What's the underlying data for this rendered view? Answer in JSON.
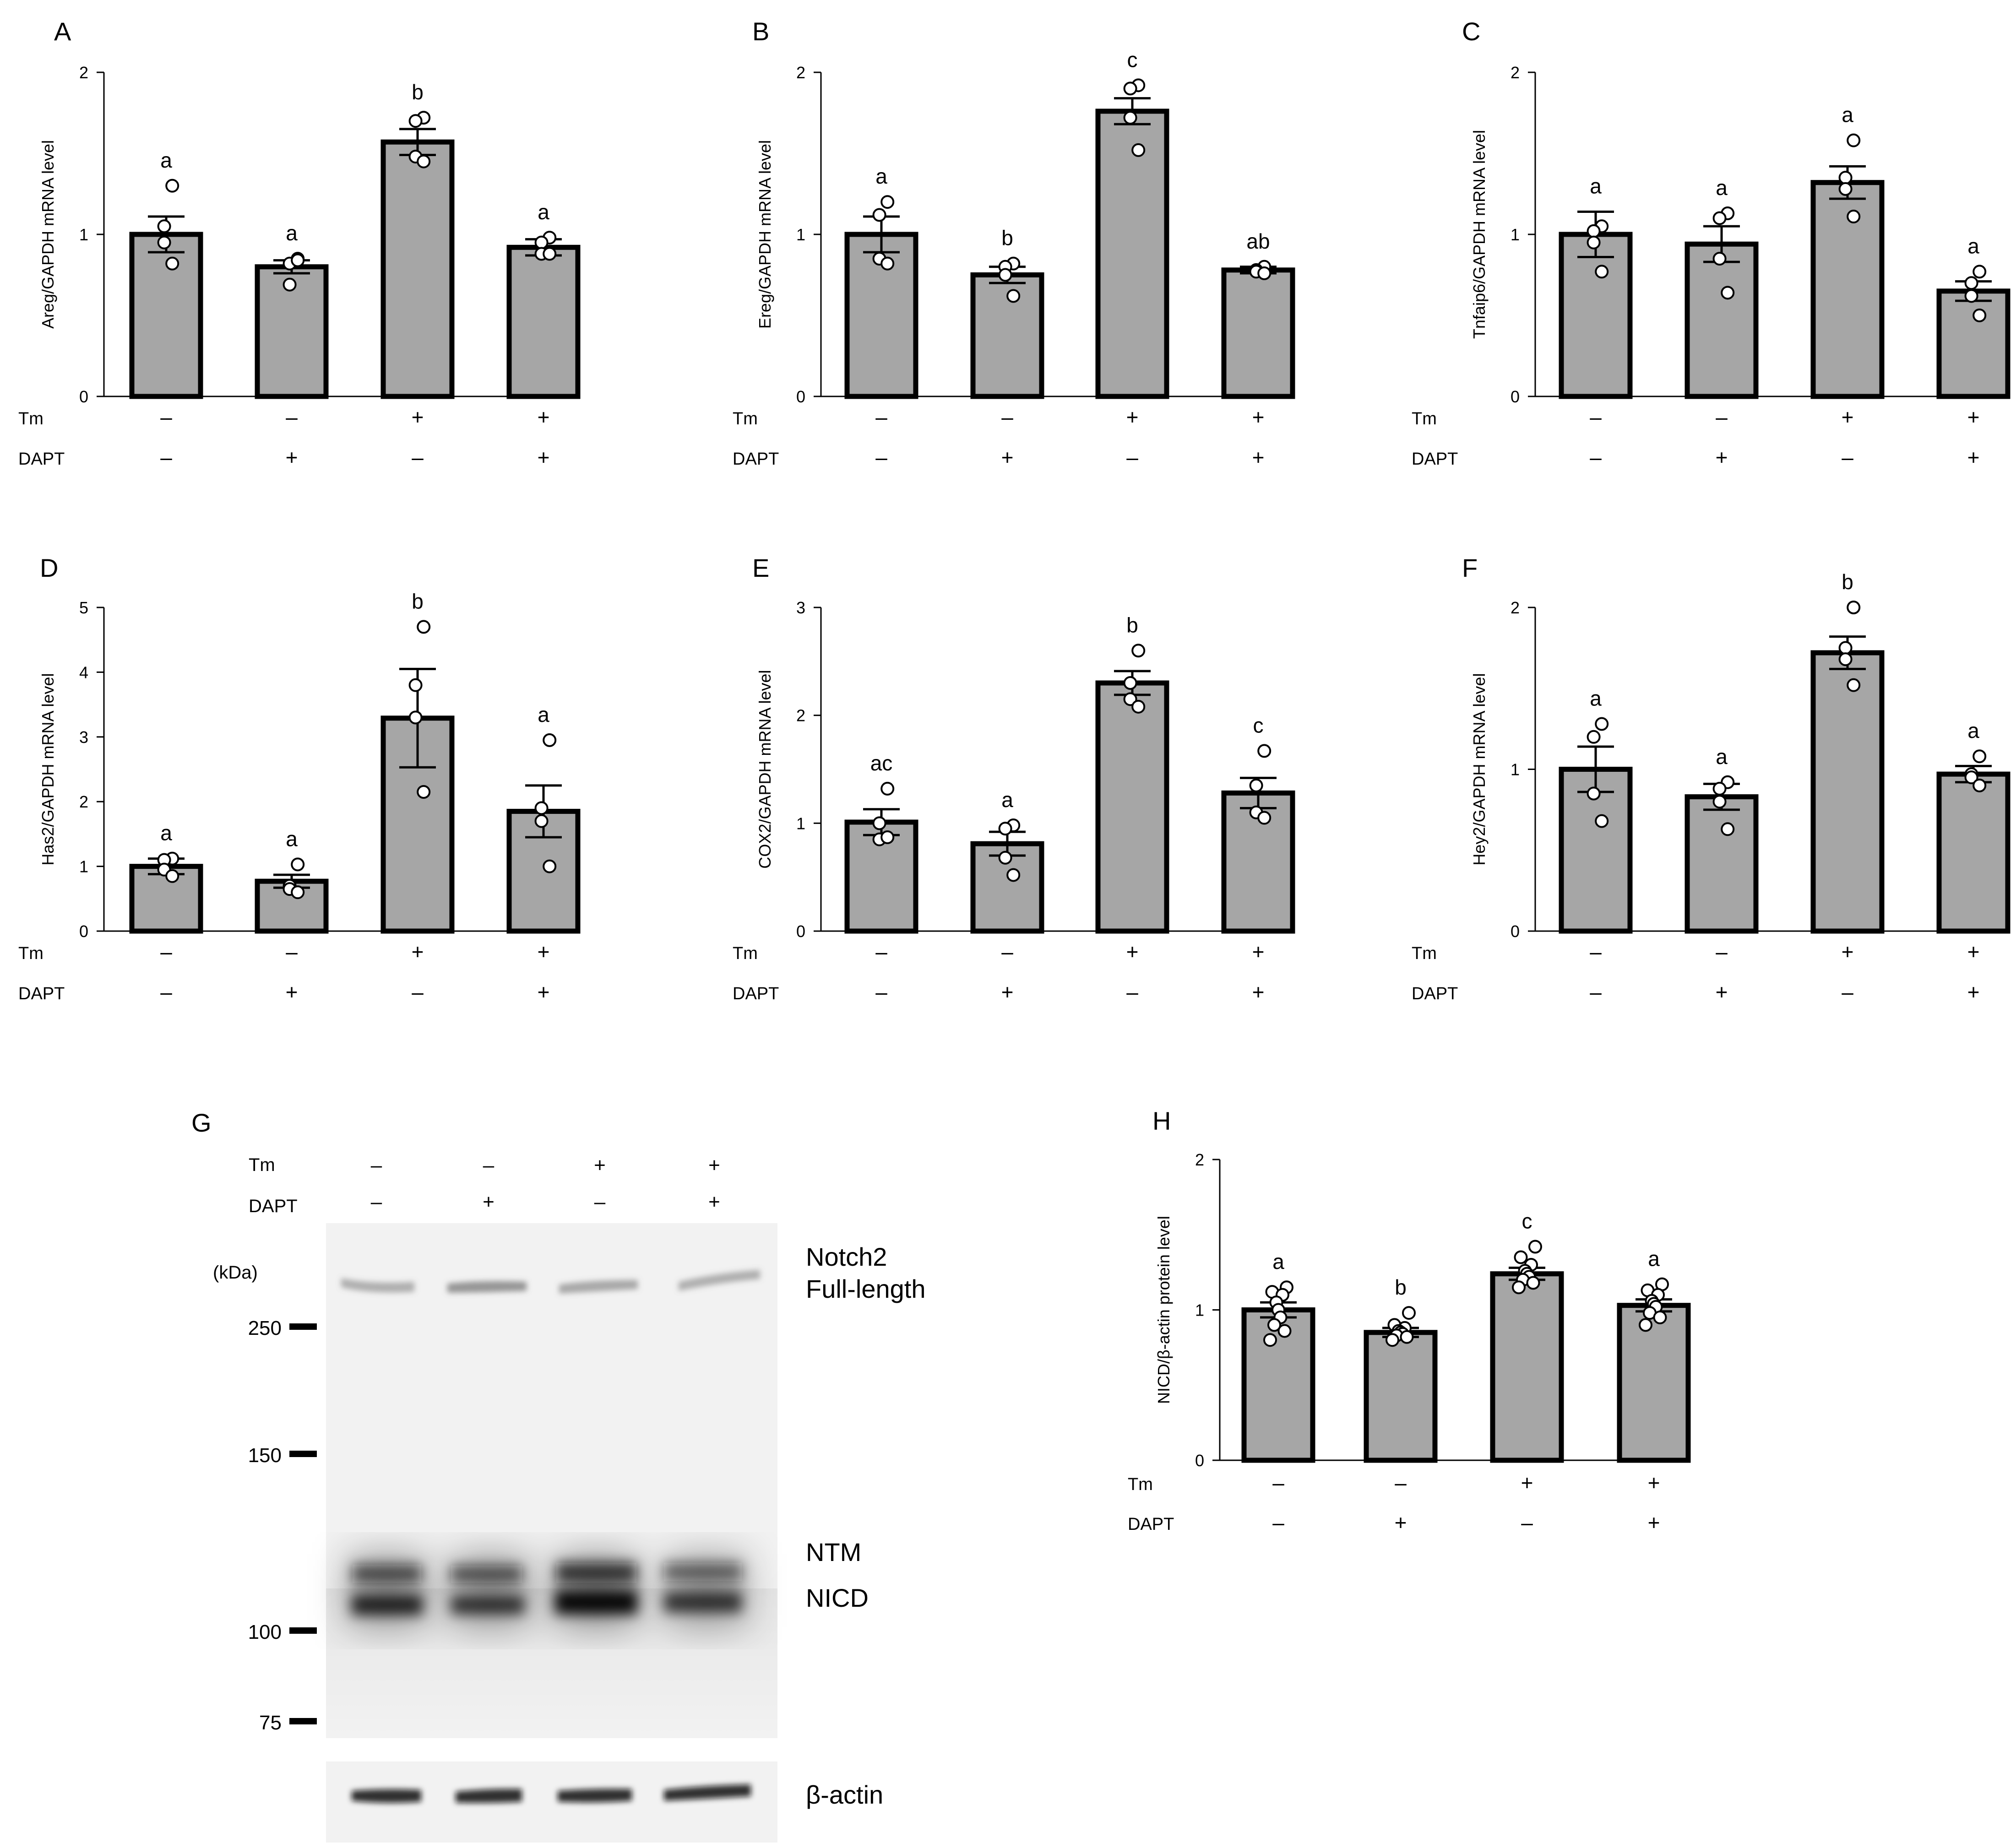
{
  "figure": {
    "treatment_labels": {
      "tm": "Tm",
      "dapt": "DAPT",
      "plus": "+",
      "minus": "–"
    },
    "treatments": [
      {
        "tm": "–",
        "dapt": "–"
      },
      {
        "tm": "–",
        "dapt": "+"
      },
      {
        "tm": "+",
        "dapt": "–"
      },
      {
        "tm": "+",
        "dapt": "+"
      }
    ],
    "colors": {
      "bar_fill": "#a6a6a6",
      "stroke": "#000000",
      "point_fill": "#ffffff"
    }
  },
  "chart_data": [
    {
      "panel": "A",
      "type": "bar",
      "ylabel": "Areg/GAPDH mRNA level",
      "ylim": [
        0,
        2
      ],
      "yticks": [
        0,
        1,
        2
      ],
      "values": [
        1.0,
        0.8,
        1.57,
        0.92
      ],
      "errors": [
        0.11,
        0.04,
        0.08,
        0.05
      ],
      "letters": [
        "a",
        "a",
        "b",
        "a"
      ],
      "points": [
        [
          1.3,
          1.05,
          0.95,
          0.82
        ],
        [
          0.85,
          0.82,
          0.69,
          0.84
        ],
        [
          1.72,
          1.7,
          1.48,
          1.45
        ],
        [
          0.98,
          0.95,
          0.88,
          0.88
        ]
      ]
    },
    {
      "panel": "B",
      "type": "bar",
      "ylabel": "Ereg/GAPDH mRNA level",
      "ylim": [
        0,
        2
      ],
      "yticks": [
        0,
        1,
        2
      ],
      "values": [
        1.0,
        0.75,
        1.76,
        0.78
      ],
      "errors": [
        0.11,
        0.05,
        0.08,
        0.02
      ],
      "letters": [
        "a",
        "b",
        "c",
        "ab"
      ],
      "points": [
        [
          1.2,
          1.12,
          0.85,
          0.82
        ],
        [
          0.82,
          0.8,
          0.75,
          0.62
        ],
        [
          1.92,
          1.9,
          1.72,
          1.52
        ],
        [
          0.8,
          0.78,
          0.77,
          0.76
        ]
      ]
    },
    {
      "panel": "C",
      "type": "bar",
      "ylabel": "Tnfaip6/GAPDH mRNA level",
      "ylim": [
        0,
        2
      ],
      "yticks": [
        0,
        1,
        2
      ],
      "values": [
        1.0,
        0.94,
        1.32,
        0.65
      ],
      "errors": [
        0.14,
        0.11,
        0.1,
        0.06
      ],
      "letters": [
        "a",
        "a",
        "a",
        "a"
      ],
      "points": [
        [
          1.05,
          1.02,
          0.95,
          0.77
        ],
        [
          1.13,
          1.1,
          0.85,
          0.64
        ],
        [
          1.58,
          1.35,
          1.28,
          1.11
        ],
        [
          0.77,
          0.7,
          0.62,
          0.5
        ]
      ]
    },
    {
      "panel": "D",
      "type": "bar",
      "ylabel": "Has2/GAPDH mRNA level",
      "ylim": [
        0,
        5
      ],
      "yticks": [
        0,
        1,
        2,
        3,
        4,
        5
      ],
      "values": [
        1.0,
        0.77,
        3.29,
        1.85
      ],
      "errors": [
        0.12,
        0.1,
        0.76,
        0.4
      ],
      "letters": [
        "a",
        "a",
        "b",
        "a"
      ],
      "points": [
        [
          1.12,
          1.1,
          0.95,
          0.85
        ],
        [
          1.03,
          0.7,
          0.65,
          0.6
        ],
        [
          4.7,
          3.8,
          3.3,
          2.15
        ],
        [
          2.95,
          1.9,
          1.7,
          1.0
        ]
      ]
    },
    {
      "panel": "E",
      "type": "bar",
      "ylabel": "COX2/GAPDH mRNA level",
      "ylim": [
        0,
        3
      ],
      "yticks": [
        0,
        1,
        2,
        3
      ],
      "values": [
        1.01,
        0.81,
        2.3,
        1.28
      ],
      "errors": [
        0.12,
        0.11,
        0.11,
        0.14
      ],
      "letters": [
        "ac",
        "a",
        "b",
        "c"
      ],
      "points": [
        [
          1.32,
          1.0,
          0.85,
          0.87
        ],
        [
          0.98,
          0.95,
          0.68,
          0.52
        ],
        [
          2.6,
          2.3,
          2.15,
          2.08
        ],
        [
          1.67,
          1.35,
          1.1,
          1.05
        ]
      ]
    },
    {
      "panel": "F",
      "type": "bar",
      "ylabel": "Hey2/GAPDH mRNA level",
      "ylim": [
        0,
        2
      ],
      "yticks": [
        0,
        1,
        2
      ],
      "values": [
        1.0,
        0.83,
        1.72,
        0.97
      ],
      "errors": [
        0.14,
        0.08,
        0.1,
        0.05
      ],
      "letters": [
        "a",
        "a",
        "b",
        "a"
      ],
      "points": [
        [
          1.28,
          1.2,
          0.85,
          0.68
        ],
        [
          0.92,
          0.88,
          0.8,
          0.63
        ],
        [
          2.0,
          1.75,
          1.68,
          1.52
        ],
        [
          1.08,
          0.97,
          0.95,
          0.9
        ]
      ]
    },
    {
      "panel": "H",
      "type": "bar",
      "ylabel": "NICD/β-actin protein level",
      "ylim": [
        0,
        2
      ],
      "yticks": [
        0,
        1,
        2
      ],
      "values": [
        1.0,
        0.85,
        1.24,
        1.03
      ],
      "errors": [
        0.05,
        0.03,
        0.04,
        0.04
      ],
      "letters": [
        "a",
        "b",
        "c",
        "a"
      ],
      "points": [
        [
          1.15,
          1.12,
          1.1,
          1.05,
          1.0,
          0.95,
          0.9,
          0.86,
          0.8
        ],
        [
          0.98,
          0.9,
          0.88,
          0.86,
          0.85,
          0.84,
          0.83,
          0.82,
          0.8
        ],
        [
          1.42,
          1.35,
          1.3,
          1.26,
          1.24,
          1.22,
          1.2,
          1.18,
          1.15
        ],
        [
          1.17,
          1.13,
          1.1,
          1.06,
          1.04,
          1.02,
          0.98,
          0.95,
          0.9
        ]
      ]
    }
  ],
  "blot": {
    "panel": "G",
    "kda_label": "(kDa)",
    "markers": [
      {
        "label": "250",
        "kda": 250
      },
      {
        "label": "150",
        "kda": 150
      },
      {
        "label": "100",
        "kda": 100
      },
      {
        "label": "75",
        "kda": 75
      }
    ],
    "band_labels": {
      "notch2_line1": "Notch2",
      "notch2_line2": "Full-length",
      "ntm": "NTM",
      "nicd": "NICD",
      "actin": "β-actin"
    }
  }
}
